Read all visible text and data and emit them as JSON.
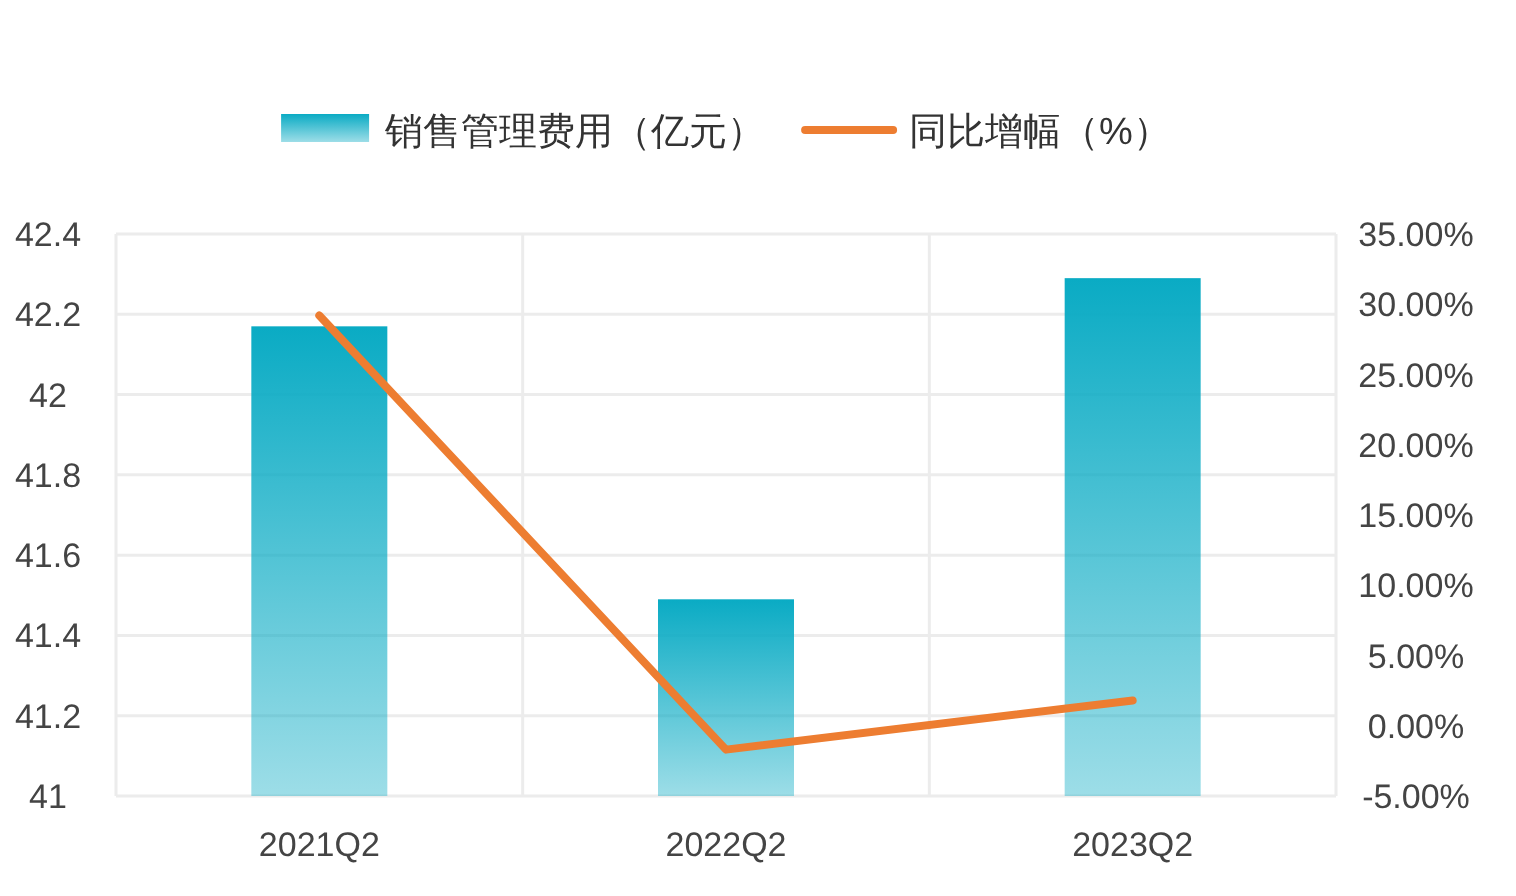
{
  "chart_data": {
    "type": "bar",
    "categories": [
      "2021Q2",
      "2022Q2",
      "2023Q2"
    ],
    "series": [
      {
        "name": "销售管理费用（亿元）",
        "color": "#0aabc4",
        "values": [
          42.17,
          41.49,
          42.29
        ]
      },
      {
        "name": "同比增幅（%）",
        "type": "line",
        "axis": "y2",
        "color": "#ed7d31",
        "values": [
          29.2,
          -1.7,
          1.8
        ]
      }
    ],
    "ylim": [
      41,
      42.4
    ],
    "yticks": [
      41,
      41.2,
      41.4,
      41.6,
      41.8,
      42,
      42.2,
      42.4
    ],
    "y2lim": [
      -5,
      35
    ],
    "y2ticks": [
      {
        "value": -5,
        "label": "-5.00%"
      },
      {
        "value": 0,
        "label": "0.00%"
      },
      {
        "value": 5,
        "label": "5.00%"
      },
      {
        "value": 10,
        "label": "10.00%"
      },
      {
        "value": 15,
        "label": "15.00%"
      },
      {
        "value": 20,
        "label": "20.00%"
      },
      {
        "value": 25,
        "label": "25.00%"
      },
      {
        "value": 30,
        "label": "30.00%"
      },
      {
        "value": 35,
        "label": "35.00%"
      }
    ],
    "grid": true,
    "legend": "top",
    "marker": "none"
  }
}
